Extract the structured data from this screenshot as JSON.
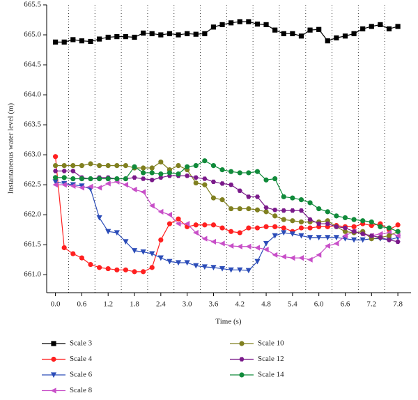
{
  "chart_data": {
    "type": "line",
    "xlabel": "Time (s)",
    "ylabel": "Instantaneous water level (m)",
    "x": [
      0.0,
      0.2,
      0.4,
      0.6,
      0.8,
      1.0,
      1.2,
      1.4,
      1.6,
      1.8,
      2.0,
      2.2,
      2.4,
      2.6,
      2.8,
      3.0,
      3.2,
      3.4,
      3.6,
      3.8,
      4.0,
      4.2,
      4.4,
      4.6,
      4.8,
      5.0,
      5.2,
      5.4,
      5.6,
      5.8,
      6.0,
      6.2,
      6.4,
      6.6,
      6.8,
      7.0,
      7.2,
      7.4,
      7.6,
      7.8
    ],
    "series": [
      {
        "name": "Scale 3",
        "color": "#000000",
        "marker": "square",
        "values": [
          664.88,
          664.88,
          664.92,
          664.9,
          664.89,
          664.93,
          664.96,
          664.97,
          664.97,
          664.96,
          665.03,
          665.02,
          665.0,
          665.02,
          665.0,
          665.02,
          665.01,
          665.02,
          665.13,
          665.17,
          665.2,
          665.22,
          665.22,
          665.18,
          665.17,
          665.08,
          665.02,
          665.02,
          664.98,
          665.08,
          665.09,
          664.9,
          664.95,
          664.98,
          665.02,
          665.1,
          665.14,
          665.17,
          665.1,
          665.14
        ]
      },
      {
        "name": "Scale 4",
        "color": "#ff2020",
        "marker": "circle",
        "values": [
          662.97,
          661.45,
          661.35,
          661.28,
          661.17,
          661.12,
          661.1,
          661.08,
          661.08,
          661.05,
          661.05,
          661.12,
          661.58,
          661.85,
          661.93,
          661.8,
          661.83,
          661.83,
          661.83,
          661.78,
          661.72,
          661.7,
          661.78,
          661.78,
          661.8,
          661.8,
          661.78,
          661.72,
          661.78,
          661.78,
          661.8,
          661.8,
          661.82,
          661.8,
          661.8,
          661.85,
          661.82,
          661.85,
          661.75,
          661.83
        ]
      },
      {
        "name": "Scale 6",
        "color": "#2b4cb8",
        "marker": "down",
        "values": [
          662.55,
          662.52,
          662.5,
          662.48,
          662.43,
          661.95,
          661.72,
          661.7,
          661.55,
          661.4,
          661.38,
          661.35,
          661.28,
          661.22,
          661.2,
          661.2,
          661.15,
          661.13,
          661.12,
          661.1,
          661.08,
          661.08,
          661.07,
          661.22,
          661.52,
          661.65,
          661.7,
          661.68,
          661.65,
          661.62,
          661.62,
          661.62,
          661.62,
          661.6,
          661.58,
          661.58,
          661.6,
          661.6,
          661.58,
          661.62
        ]
      },
      {
        "name": "Scale 8",
        "color": "#c84fc8",
        "marker": "left",
        "values": [
          662.5,
          662.5,
          662.48,
          662.45,
          662.47,
          662.45,
          662.52,
          662.55,
          662.5,
          662.42,
          662.38,
          662.15,
          662.05,
          662.0,
          661.85,
          661.85,
          661.7,
          661.6,
          661.55,
          661.52,
          661.48,
          661.47,
          661.47,
          661.45,
          661.42,
          661.33,
          661.3,
          661.28,
          661.28,
          661.25,
          661.33,
          661.48,
          661.52,
          661.65,
          661.72,
          661.68,
          661.65,
          661.68,
          661.7,
          661.65
        ]
      },
      {
        "name": "Scale 10",
        "color": "#808020",
        "marker": "circle",
        "values": [
          662.82,
          662.82,
          662.82,
          662.82,
          662.85,
          662.82,
          662.82,
          662.82,
          662.82,
          662.78,
          662.78,
          662.78,
          662.88,
          662.75,
          662.82,
          662.75,
          662.53,
          662.5,
          662.28,
          662.25,
          662.1,
          662.1,
          662.1,
          662.08,
          662.05,
          661.98,
          661.92,
          661.9,
          661.88,
          661.88,
          661.88,
          661.9,
          661.8,
          661.72,
          661.7,
          661.72,
          661.6,
          661.62,
          661.65,
          661.72
        ]
      },
      {
        "name": "Scale 12",
        "color": "#7a1a8a",
        "marker": "hexagon",
        "values": [
          662.73,
          662.73,
          662.73,
          662.62,
          662.6,
          662.62,
          662.62,
          662.6,
          662.6,
          662.62,
          662.6,
          662.58,
          662.62,
          662.65,
          662.65,
          662.65,
          662.62,
          662.6,
          662.55,
          662.52,
          662.5,
          662.4,
          662.3,
          662.3,
          662.12,
          662.08,
          662.07,
          662.07,
          662.07,
          661.92,
          661.85,
          661.85,
          661.8,
          661.78,
          661.72,
          661.68,
          661.65,
          661.62,
          661.58,
          661.55
        ]
      },
      {
        "name": "Scale 14",
        "color": "#108a3a",
        "marker": "circle",
        "values": [
          662.62,
          662.62,
          662.6,
          662.6,
          662.6,
          662.6,
          662.6,
          662.6,
          662.6,
          662.8,
          662.7,
          662.7,
          662.68,
          662.7,
          662.68,
          662.8,
          662.82,
          662.9,
          662.82,
          662.75,
          662.72,
          662.7,
          662.7,
          662.72,
          662.58,
          662.6,
          662.3,
          662.28,
          662.25,
          662.2,
          662.1,
          662.05,
          661.98,
          661.95,
          661.92,
          661.9,
          661.88,
          661.8,
          661.78,
          661.72
        ]
      }
    ],
    "xlim": [
      -0.2,
      8.1
    ],
    "ylim": [
      660.7,
      665.5
    ],
    "xticks": [
      {
        "value": 0,
        "label": "0.0"
      },
      0.6,
      1.2,
      1.8,
      2.4,
      {
        "value": 3,
        "label": "3.0"
      },
      3.6,
      4.2,
      4.8,
      5.4,
      {
        "value": 6,
        "label": "6.0"
      },
      6.6,
      7.2,
      7.8
    ],
    "xgrid_dotted": [
      0.3,
      0.9,
      1.5,
      2.1,
      2.7,
      3.3,
      3.9,
      4.5,
      5.1,
      5.7,
      6.3,
      6.9,
      7.5
    ],
    "yticks": [
      {
        "value": 661,
        "label": "661.0"
      },
      661.5,
      {
        "value": 662,
        "label": "662.0"
      },
      662.5,
      {
        "value": 663,
        "label": "663.0"
      },
      663.5,
      {
        "value": 664,
        "label": "664.0"
      },
      664.5,
      {
        "value": 665,
        "label": "665.0"
      },
      665.5
    ]
  }
}
